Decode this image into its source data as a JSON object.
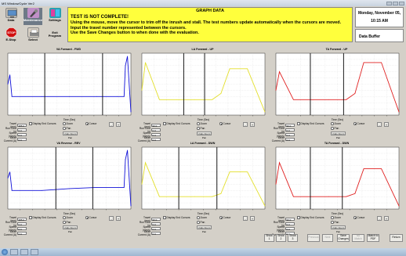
{
  "window": {
    "title": "MS Window/Cycle Ver2"
  },
  "toolbar": {
    "data": "Data",
    "maintenance": "Maintenance",
    "settings": "Settings",
    "estop": "E-Stop",
    "select": "Select",
    "exit": "Exit\nProgram"
  },
  "message": {
    "heading": "GRAPH DATA",
    "line1": "TEST IS NOT COMPLETE!",
    "line2": "Using the mouse, move the cursor to trim off the inrush and stall.  The test numbers update automatically when the cursors are moved.  Input the travel number represented between the cursors.",
    "line3": "Use the Save Changes button to when done with the evaluation."
  },
  "status": {
    "date": "Monday, November 05,",
    "time": "10:15 AM",
    "buffer": "Data Buffer"
  },
  "labels": {
    "time_axis": "Time (Sec)",
    "travel": "Travel (mm)",
    "run_time": "Run Time (s)",
    "speed": "Speed (mm/s)",
    "mean_current": "Mean Current (A)",
    "display_end": "Display End Cursors",
    "zoom": "Zoom",
    "cursor": "Cursor",
    "pan": "Pan",
    "undo": "Undo Zoom Pan",
    "minus": "-",
    "plus": "+"
  },
  "panels": [
    {
      "title": "VA Forward - FWD",
      "travel": "385.0",
      "run": "0.0",
      "speed": "0.0",
      "current": "0.0"
    },
    {
      "title": "LA Forward - UP",
      "travel": "90.0",
      "run": "0.0",
      "speed": "0.0",
      "current": "0.0"
    },
    {
      "title": "TA Forward - UP",
      "travel": "90.0",
      "run": "0.0",
      "speed": "0.0",
      "current": "0.0"
    },
    {
      "title": "VA Reverse - REV",
      "travel": "385.0",
      "run": "0.0",
      "speed": "0.0",
      "current": "0.0"
    },
    {
      "title": "LA Forward - DWN",
      "travel": "90.0",
      "run": "0.0",
      "speed": "0.0",
      "current": "0.0"
    },
    {
      "title": "TA Forward - DWN",
      "travel": "90.0",
      "run": "0.0",
      "speed": "0.0",
      "current": "0.0"
    }
  ],
  "bottom": {
    "show1": "Show 1",
    "show2": "Show 2",
    "show3": "Show 3",
    "previous": "Previous",
    "next": "Next",
    "save": "Save\nChanges",
    "nomatch": "No Match",
    "matchpdf": "Match to\nPDF",
    "return": "Return"
  },
  "colors": {
    "blue": "#1010d8",
    "yellow": "#e3df2a",
    "red": "#e02020",
    "message_bg": "#ffff3c"
  },
  "chart_data": [
    {
      "type": "line",
      "title": "VA Forward - FWD",
      "xlabel": "Time (Sec)",
      "x": [
        0,
        0.3,
        0.6,
        5,
        9,
        13,
        16,
        17,
        17.2,
        17.5,
        18
      ],
      "series": [
        {
          "values": [
            5,
            6.5,
            3,
            3,
            3,
            3,
            3,
            3,
            8,
            9.5,
            0.5
          ]
        }
      ]
    },
    {
      "type": "line",
      "title": "LA Forward - UP",
      "xlabel": "Time (Sec)",
      "x": [
        0,
        0.2,
        1,
        2,
        3,
        4,
        4.5,
        5,
        6,
        7
      ],
      "series": [
        {
          "values": [
            4,
            8.5,
            2.5,
            2.5,
            2.5,
            2.5,
            3.5,
            7.5,
            7.5,
            0.5
          ]
        }
      ]
    },
    {
      "type": "line",
      "title": "TA Forward - UP",
      "xlabel": "Time (Sec)",
      "x": [
        0,
        0.2,
        1,
        2,
        3,
        4,
        4.5,
        5,
        6,
        7
      ],
      "series": [
        {
          "values": [
            4,
            7,
            2.5,
            2.5,
            2.5,
            2.5,
            3.5,
            8.5,
            8.5,
            0.5
          ]
        }
      ]
    },
    {
      "type": "line",
      "title": "VA Reverse - REV",
      "xlabel": "Time (Sec)",
      "x": [
        0,
        0.3,
        0.6,
        5,
        9,
        13,
        16,
        17,
        17.2,
        17.5,
        18
      ],
      "series": [
        {
          "values": [
            5,
            6,
            3,
            3,
            3.3,
            3.5,
            3.5,
            3.5,
            8,
            9.5,
            0.5
          ]
        }
      ]
    },
    {
      "type": "line",
      "title": "LA Forward - DWN",
      "xlabel": "Time (Sec)",
      "x": [
        0,
        0.2,
        1,
        2,
        3,
        4,
        4.5,
        5,
        6,
        7
      ],
      "series": [
        {
          "values": [
            4,
            7.5,
            2,
            2,
            2,
            2,
            2.5,
            6,
            6,
            0.5
          ]
        }
      ]
    },
    {
      "type": "line",
      "title": "TA Forward - DWN",
      "xlabel": "Time (Sec)",
      "x": [
        0,
        0.2,
        1,
        2,
        3,
        4,
        4.5,
        5,
        6,
        7
      ],
      "series": [
        {
          "values": [
            4,
            7.5,
            2,
            2,
            2,
            2,
            2.5,
            6.5,
            6.5,
            0.5
          ]
        }
      ]
    }
  ]
}
